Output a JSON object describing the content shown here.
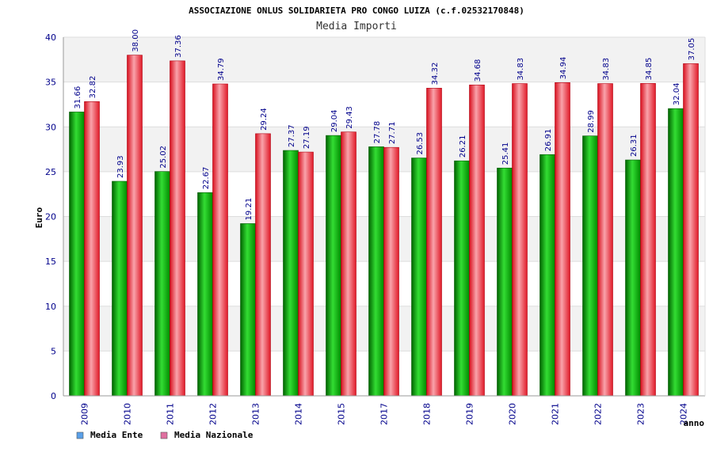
{
  "chart_data": {
    "type": "bar",
    "title": "ASSOCIAZIONE ONLUS SOLIDARIETA PRO CONGO LUIZA (c.f.02532170848)",
    "subtitle": "Media Importi",
    "ylabel": "Euro",
    "xlabel": "anno",
    "ylim": [
      0,
      40
    ],
    "yticks": [
      0,
      5,
      10,
      15,
      20,
      25,
      30,
      35,
      40
    ],
    "grid": true,
    "legend_position": "bottom-left",
    "categories": [
      "2009",
      "2010",
      "2011",
      "2012",
      "2013",
      "2014",
      "2015",
      "2017",
      "2018",
      "2019",
      "2020",
      "2021",
      "2022",
      "2023",
      "2024"
    ],
    "series": [
      {
        "name": "Media Ente",
        "color": "#00b000",
        "legend_color": "#5aa0e8",
        "values": [
          31.66,
          23.93,
          25.02,
          22.67,
          19.21,
          27.37,
          29.04,
          27.78,
          26.53,
          26.21,
          25.41,
          26.91,
          28.99,
          26.31,
          32.04
        ],
        "labels": [
          "31.66",
          "23.93",
          "25.02",
          "22.67",
          "19.21",
          "27.37",
          "29.04",
          "27.78",
          "26.53",
          "26.21",
          "25.41",
          "26.91",
          "28.99",
          "26.31",
          "32.04"
        ]
      },
      {
        "name": "Media Nazionale",
        "color": "#e82030",
        "legend_color": "#e070a0",
        "values": [
          32.82,
          38.0,
          37.36,
          34.79,
          29.24,
          27.19,
          29.43,
          27.71,
          34.32,
          34.68,
          34.83,
          34.94,
          34.83,
          34.85,
          37.05
        ],
        "labels": [
          "32.82",
          "38.00",
          "37.36",
          "34.79",
          "29.24",
          "27.19",
          "29.43",
          "27.71",
          "34.32",
          "34.68",
          "34.83",
          "34.94",
          "34.83",
          "34.85",
          "37.05"
        ]
      }
    ]
  }
}
